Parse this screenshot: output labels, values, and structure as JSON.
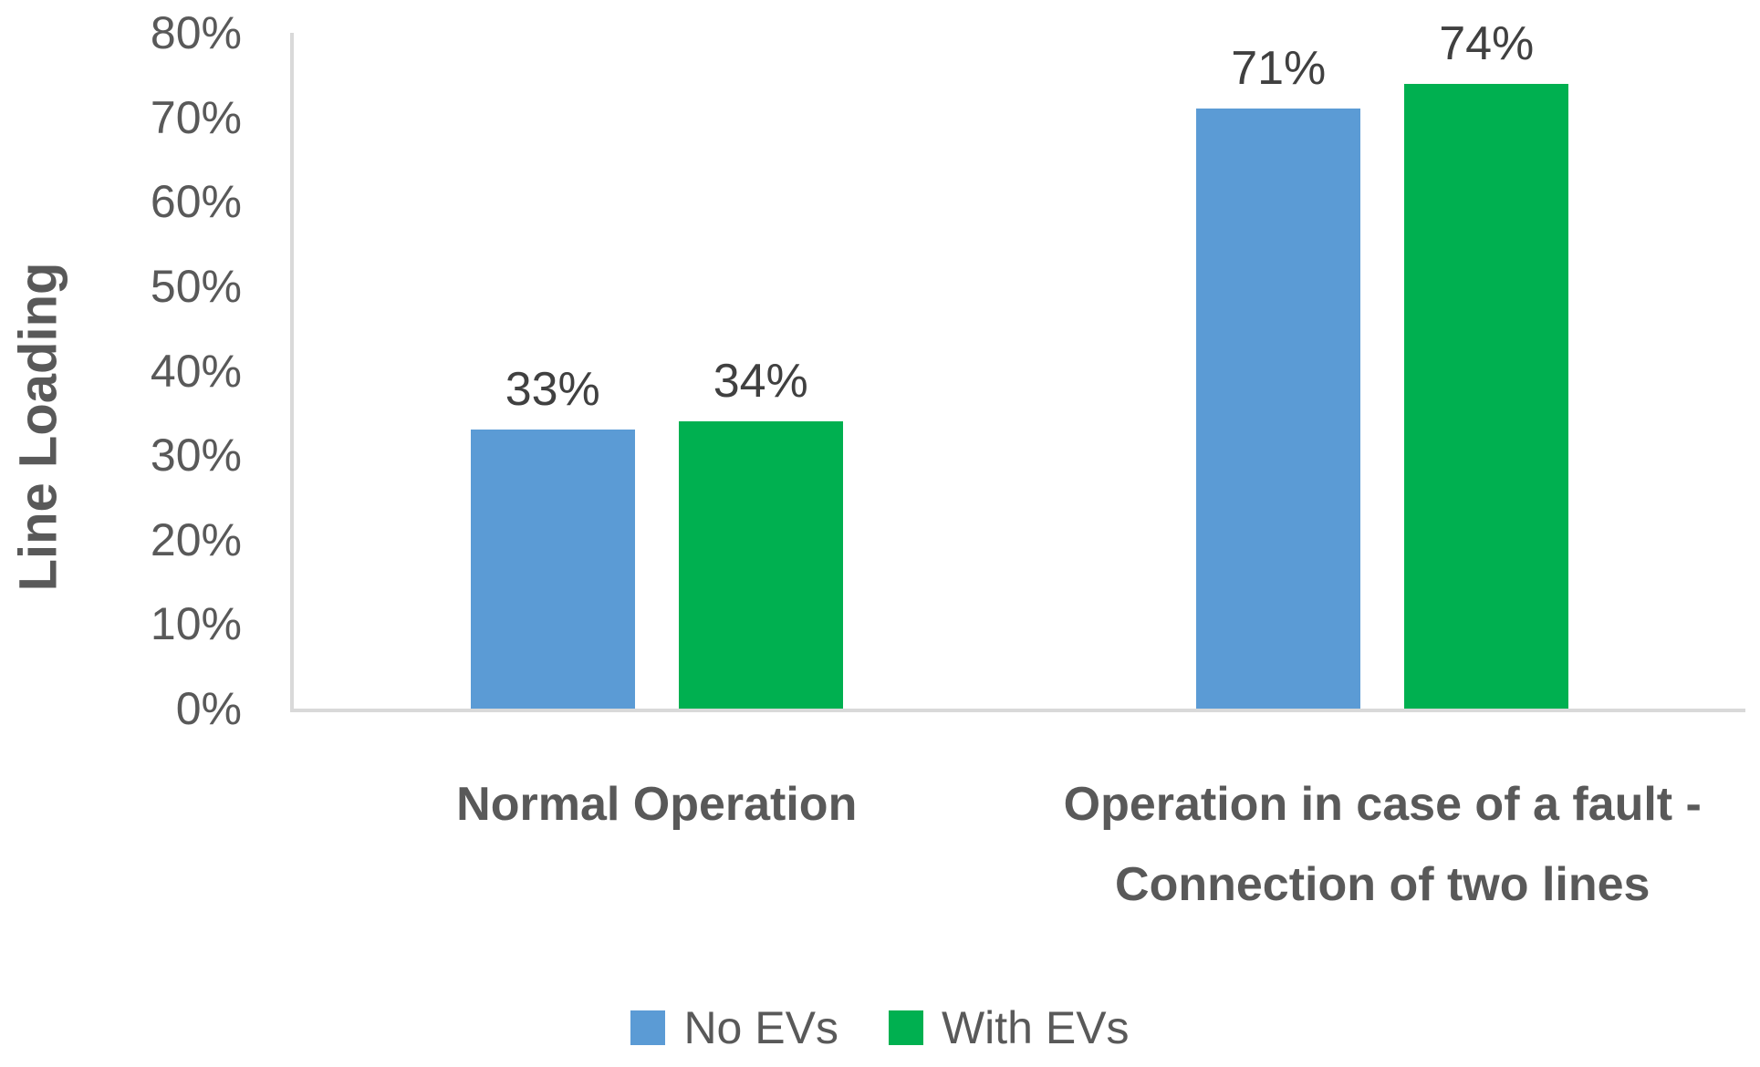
{
  "chart_data": {
    "type": "bar",
    "title": "",
    "xlabel": "",
    "ylabel": "Line Loading",
    "categories": [
      "Normal Operation",
      "Operation in case of a fault -\nConnection of two lines"
    ],
    "series": [
      {
        "name": "No EVs",
        "color": "#5B9BD5",
        "values": [
          33,
          71
        ],
        "labels": [
          "33%",
          "71%"
        ]
      },
      {
        "name": "With EVs",
        "color": "#00B050",
        "values": [
          34,
          74
        ],
        "labels": [
          "34%",
          "74%"
        ]
      }
    ],
    "ylim": [
      0,
      80
    ],
    "ytick_step": 10,
    "ytick_labels": [
      "0%",
      "10%",
      "20%",
      "30%",
      "40%",
      "50%",
      "60%",
      "70%",
      "80%"
    ],
    "grid": "off",
    "legend_position": "bottom",
    "data_labels": "on",
    "axis_color": "#D9D9D9",
    "tick_text_color": "#595959",
    "data_label_color": "#404040"
  }
}
